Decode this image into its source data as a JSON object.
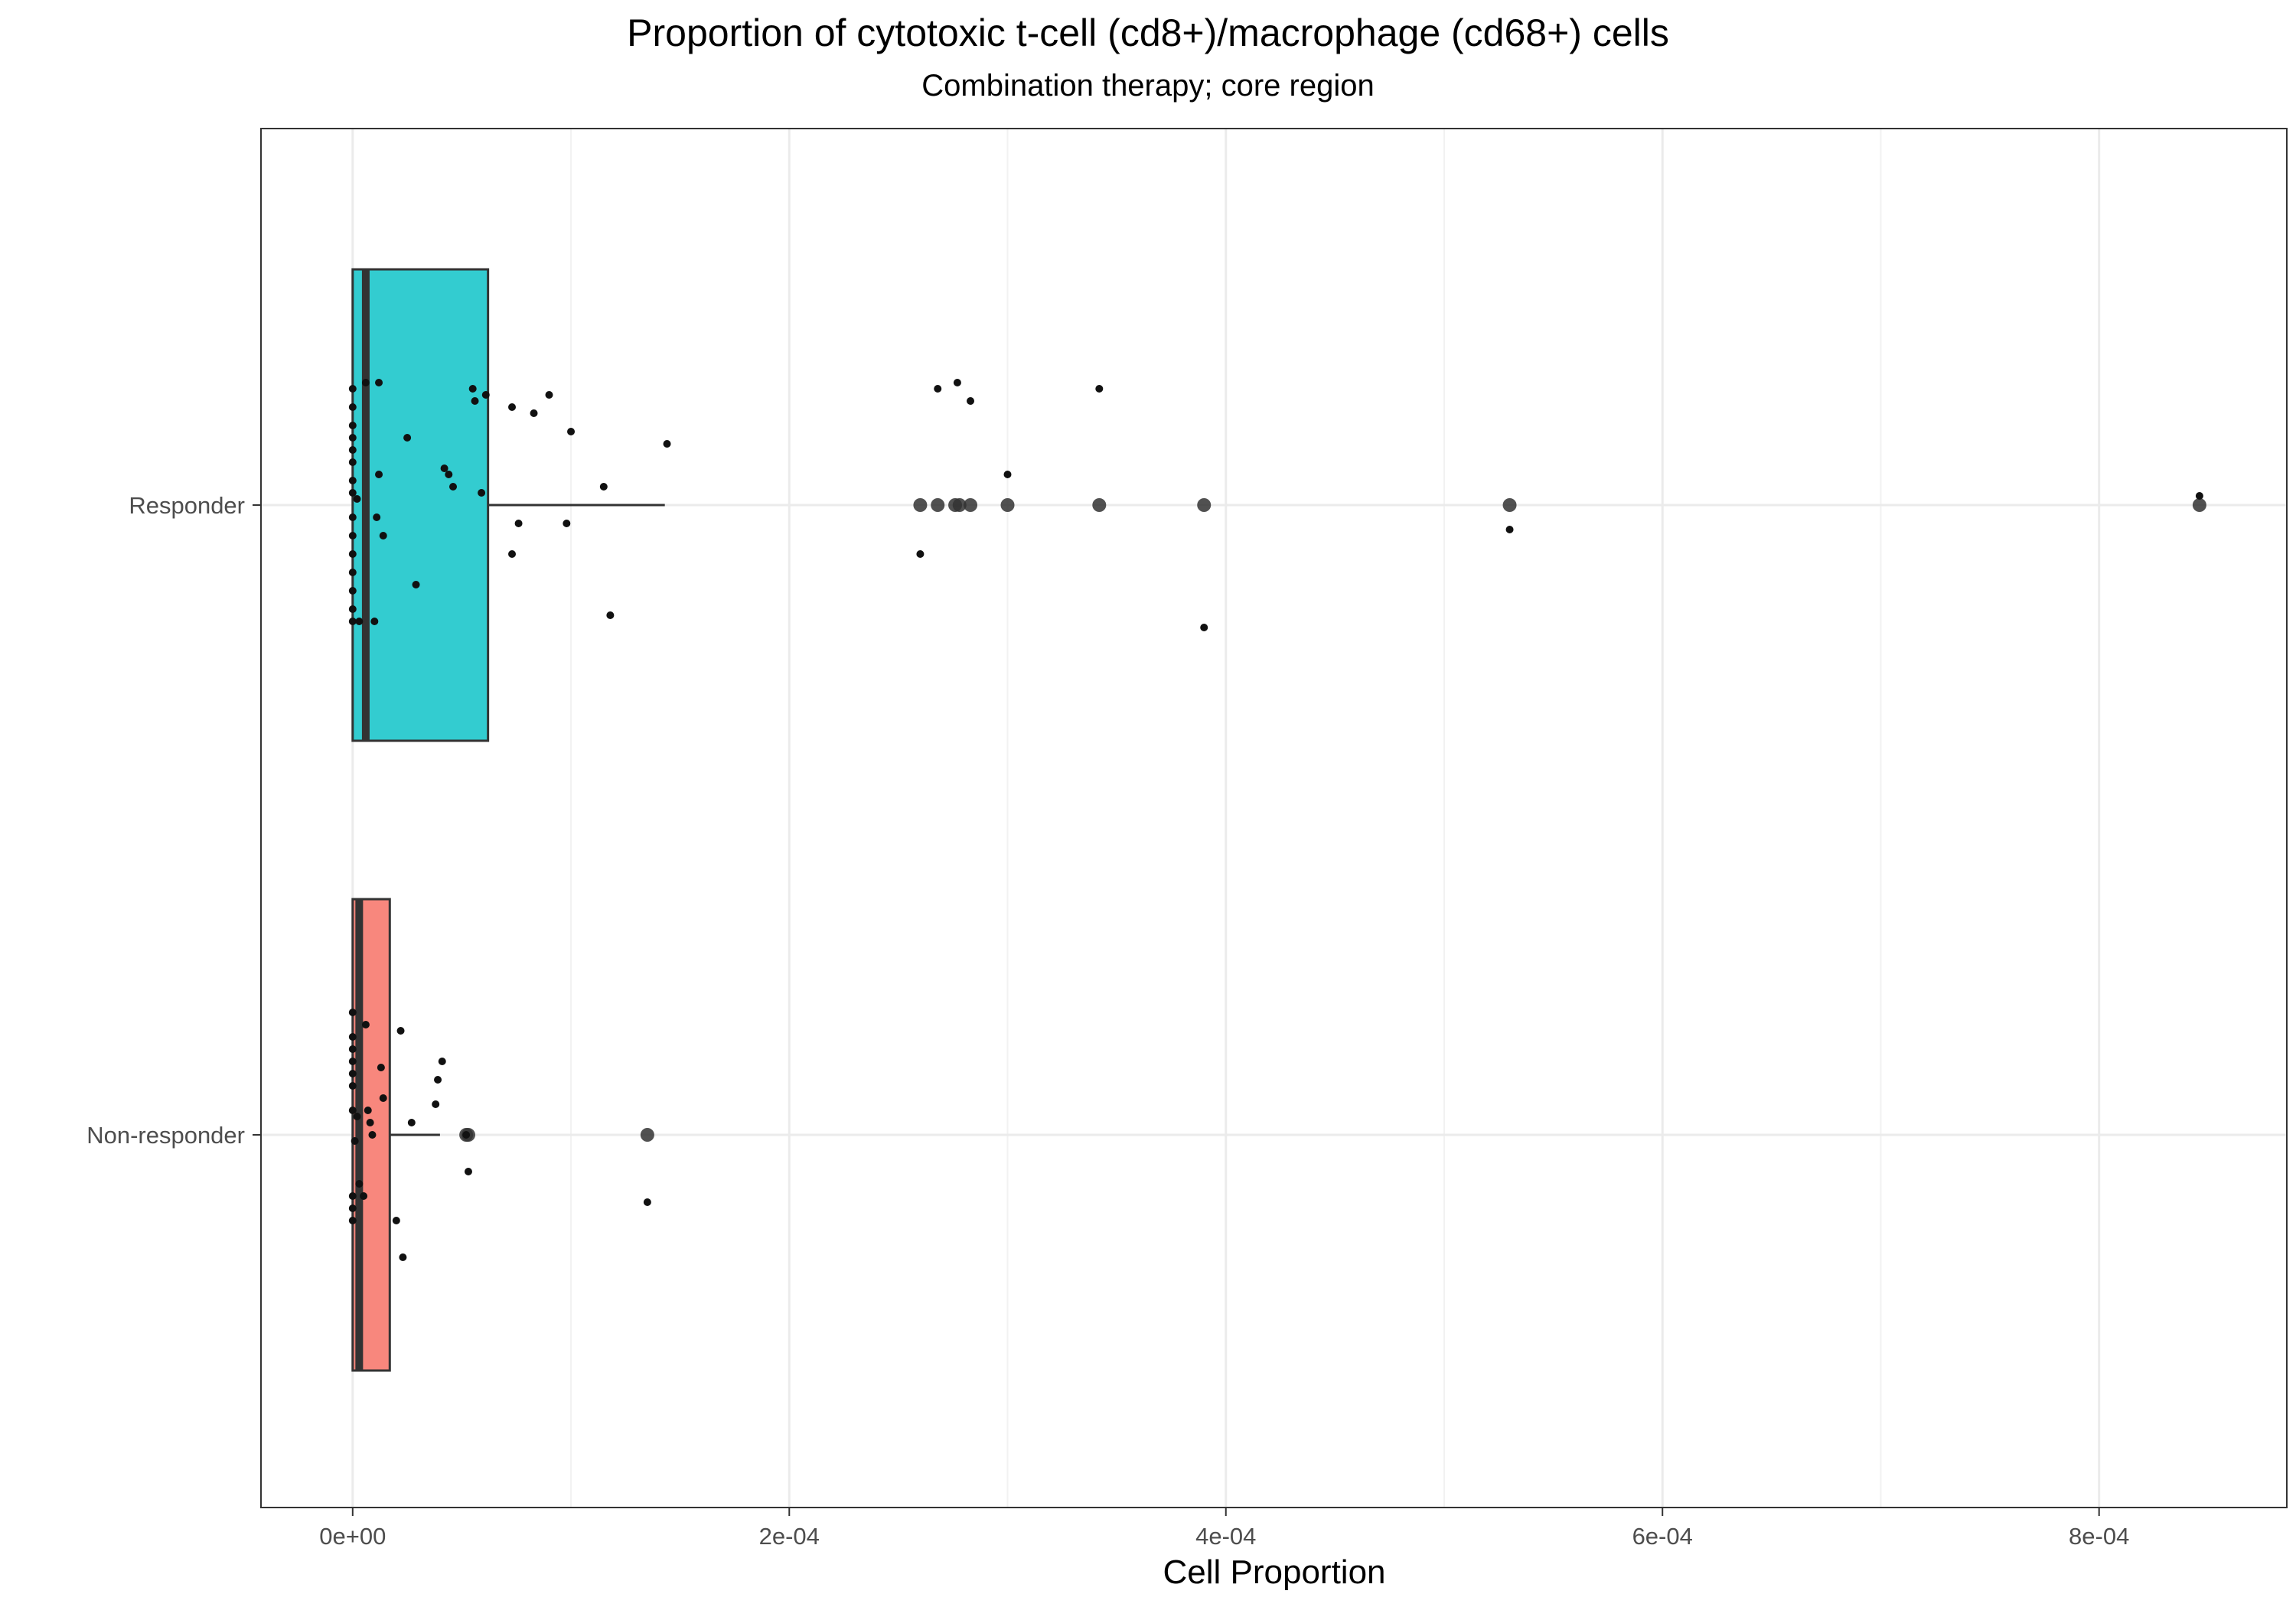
{
  "chart_data": {
    "type": "boxplot",
    "title": "Proportion of cytotoxic t-cell (cd8+)/macrophage (cd68+) cells",
    "subtitle": "Combination therapy; core region",
    "xlabel": "Cell Proportion",
    "ylabel": "",
    "xlim": [
      -4.2e-05,
      0.000886
    ],
    "x_ticks": [
      0,
      0.0002,
      0.0004,
      0.0006,
      0.0008
    ],
    "x_tick_labels": [
      "0e+00",
      "2e-04",
      "4e-04",
      "6e-04",
      "8e-04"
    ],
    "categories": [
      "Responder",
      "Non-responder"
    ],
    "grid": true,
    "legend": "none",
    "colors": {
      "Responder": "#33CCD0",
      "Non-responder": "#F8877D",
      "outline": "#333333"
    },
    "boxes": [
      {
        "category": "Responder",
        "color": "#33CCD0",
        "min": 0,
        "q1": 0,
        "median": 6e-06,
        "q3": 6.2e-05,
        "whisker_high": 0.000143,
        "outliers": [
          0.00026,
          0.000268,
          0.000276,
          0.000278,
          0.000283,
          0.0003,
          0.000342,
          0.00039,
          0.00053,
          0.000846
        ],
        "jitter_points": [
          {
            "x": 0,
            "y": 0.19
          },
          {
            "x": 0,
            "y": 0.16
          },
          {
            "x": 0,
            "y": 0.13
          },
          {
            "x": 0,
            "y": 0.11
          },
          {
            "x": 0,
            "y": 0.09
          },
          {
            "x": 0,
            "y": 0.07
          },
          {
            "x": 0,
            "y": 0.04
          },
          {
            "x": 0,
            "y": 0.02
          },
          {
            "x": 0,
            "y": -0.02
          },
          {
            "x": 0,
            "y": -0.05
          },
          {
            "x": 0,
            "y": -0.08
          },
          {
            "x": 0,
            "y": -0.11
          },
          {
            "x": 0,
            "y": -0.14
          },
          {
            "x": 0,
            "y": -0.17
          },
          {
            "x": 0,
            "y": -0.19
          },
          {
            "x": 2e-06,
            "y": 0.01
          },
          {
            "x": 3e-06,
            "y": -0.19
          },
          {
            "x": 6e-06,
            "y": 0.2
          },
          {
            "x": 1e-05,
            "y": -0.19
          },
          {
            "x": 1.1e-05,
            "y": -0.02
          },
          {
            "x": 1.2e-05,
            "y": 0.2
          },
          {
            "x": 1.2e-05,
            "y": 0.05
          },
          {
            "x": 1.4e-05,
            "y": -0.05
          },
          {
            "x": 2.5e-05,
            "y": 0.11
          },
          {
            "x": 2.9e-05,
            "y": -0.13
          },
          {
            "x": 4.2e-05,
            "y": 0.06
          },
          {
            "x": 4.4e-05,
            "y": 0.05
          },
          {
            "x": 4.6e-05,
            "y": 0.03
          },
          {
            "x": 5.5e-05,
            "y": 0.19
          },
          {
            "x": 5.6e-05,
            "y": 0.17
          },
          {
            "x": 5.9e-05,
            "y": 0.02
          },
          {
            "x": 6.1e-05,
            "y": 0.18
          },
          {
            "x": 7.3e-05,
            "y": 0.16
          },
          {
            "x": 7.3e-05,
            "y": -0.08
          },
          {
            "x": 7.6e-05,
            "y": -0.03
          },
          {
            "x": 8.3e-05,
            "y": 0.15
          },
          {
            "x": 9e-05,
            "y": 0.18
          },
          {
            "x": 9.8e-05,
            "y": -0.03
          },
          {
            "x": 0.0001,
            "y": 0.12
          },
          {
            "x": 0.000115,
            "y": 0.03
          },
          {
            "x": 0.000118,
            "y": -0.18
          },
          {
            "x": 0.000144,
            "y": 0.1
          },
          {
            "x": 0.00026,
            "y": -0.08
          },
          {
            "x": 0.000268,
            "y": 0.19
          },
          {
            "x": 0.000277,
            "y": 0.2
          },
          {
            "x": 0.000283,
            "y": 0.17
          },
          {
            "x": 0.0003,
            "y": 0.05
          },
          {
            "x": 0.000342,
            "y": 0.19
          },
          {
            "x": 0.00039,
            "y": -0.2
          },
          {
            "x": 0.00053,
            "y": -0.04
          },
          {
            "x": 0.000846,
            "y": 0.015
          }
        ]
      },
      {
        "category": "Non-responder",
        "color": "#F8877D",
        "min": 0,
        "q1": 0,
        "median": 3e-06,
        "q3": 1.7e-05,
        "whisker_high": 4e-05,
        "outliers": [
          5.2e-05,
          5.3e-05,
          0.000135
        ],
        "jitter_points": [
          {
            "x": 0,
            "y": 0.2
          },
          {
            "x": 0,
            "y": 0.16
          },
          {
            "x": 0,
            "y": 0.14
          },
          {
            "x": 0,
            "y": 0.12
          },
          {
            "x": 0,
            "y": 0.1
          },
          {
            "x": 0,
            "y": 0.08
          },
          {
            "x": 0,
            "y": 0.04
          },
          {
            "x": 0,
            "y": -0.1
          },
          {
            "x": 0,
            "y": -0.12
          },
          {
            "x": 0,
            "y": -0.14
          },
          {
            "x": 1e-06,
            "y": -0.01
          },
          {
            "x": 2e-06,
            "y": 0.03
          },
          {
            "x": 3e-06,
            "y": -0.08
          },
          {
            "x": 5e-06,
            "y": -0.1
          },
          {
            "x": 6e-06,
            "y": 0.18
          },
          {
            "x": 7e-06,
            "y": 0.04
          },
          {
            "x": 8e-06,
            "y": 0.02
          },
          {
            "x": 9e-06,
            "y": 0.0
          },
          {
            "x": 1.3e-05,
            "y": 0.11
          },
          {
            "x": 1.4e-05,
            "y": 0.06
          },
          {
            "x": 2e-05,
            "y": -0.14
          },
          {
            "x": 2.2e-05,
            "y": 0.17
          },
          {
            "x": 2.3e-05,
            "y": -0.2
          },
          {
            "x": 2.7e-05,
            "y": 0.02
          },
          {
            "x": 3.8e-05,
            "y": 0.05
          },
          {
            "x": 3.9e-05,
            "y": 0.09
          },
          {
            "x": 4.1e-05,
            "y": 0.12
          },
          {
            "x": 5.2e-05,
            "y": 0.0
          },
          {
            "x": 5.3e-05,
            "y": -0.06
          },
          {
            "x": 0.000135,
            "y": -0.11
          }
        ]
      }
    ]
  }
}
